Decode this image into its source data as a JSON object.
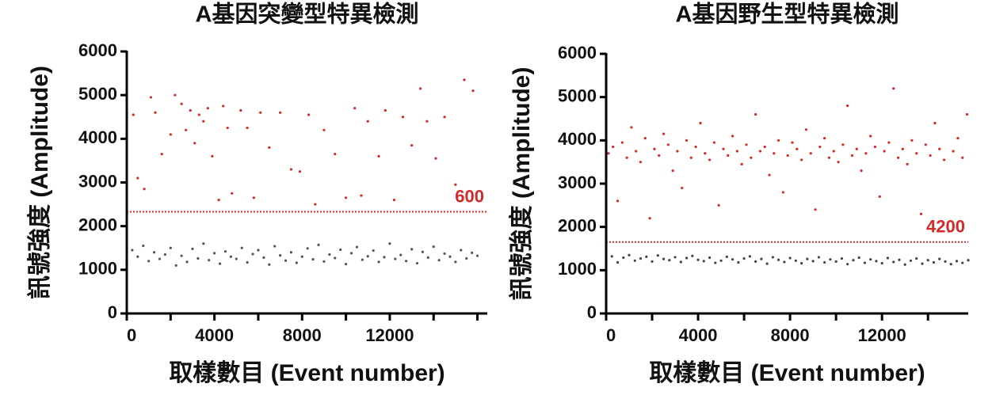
{
  "chart_data": [
    {
      "type": "scatter",
      "title": "A基因突變型特異檢測",
      "x_label": "取樣數目 (Event number)",
      "y_label": "訊號強度 (Amplitude)",
      "xlim": [
        0,
        16450
      ],
      "ylim": [
        0,
        6000
      ],
      "xticks": [
        0,
        4000,
        8000,
        12000
      ],
      "xminorticks": [
        2000,
        6000,
        10000,
        14000,
        16000
      ],
      "yticks": [
        0,
        1000,
        2000,
        3000,
        4000,
        5000,
        6000
      ],
      "threshold": 2330,
      "threshold_color": "#d42a2a",
      "annotation": "600",
      "series": [
        {
          "color": "#555555",
          "x": [
            0,
            250,
            500,
            750,
            1000,
            1250,
            1500,
            1750,
            2000,
            2250,
            2500,
            2750,
            3000,
            3250,
            3500,
            3750,
            4000,
            4250,
            4500,
            4750,
            5000,
            5250,
            5500,
            5750,
            6000,
            6250,
            6500,
            6750,
            7000,
            7250,
            7500,
            7750,
            8000,
            8250,
            8500,
            8750,
            9000,
            9250,
            9500,
            9750,
            10000,
            10250,
            10500,
            10750,
            11000,
            11250,
            11500,
            11750,
            12000,
            12250,
            12500,
            12750,
            13000,
            13250,
            13500,
            13750,
            14000,
            14250,
            14500,
            14750,
            15000,
            15250,
            15500,
            15750,
            16000
          ],
          "values": [
            1150,
            1450,
            1300,
            1550,
            1200,
            1400,
            1250,
            1350,
            1500,
            1100,
            1320,
            1180,
            1480,
            1260,
            1600,
            1220,
            1380,
            1140,
            1420,
            1300,
            1250,
            1500,
            1170,
            1360,
            1450,
            1280,
            1120,
            1540,
            1330,
            1210,
            1400,
            1160,
            1300,
            1490,
            1240,
            1570,
            1190,
            1350,
            1270,
            1460,
            1130,
            1380,
            1520,
            1230,
            1310,
            1440,
            1180,
            1290,
            1600,
            1250,
            1340,
            1200,
            1470,
            1150,
            1410,
            1280,
            1530,
            1220,
            1370,
            1300,
            1180,
            1450,
            1260,
            1390,
            1320
          ]
        },
        {
          "color": "#d42a2a",
          "x": [
            300,
            500,
            800,
            1100,
            1300,
            1600,
            2000,
            2200,
            2500,
            2700,
            2900,
            3100,
            3300,
            3500,
            3700,
            3900,
            4200,
            4400,
            4600,
            4800,
            5200,
            5500,
            5800,
            6100,
            6500,
            7000,
            7500,
            7900,
            8300,
            8600,
            9000,
            9500,
            10000,
            10400,
            10700,
            11000,
            11500,
            11800,
            12200,
            12600,
            13000,
            13400,
            13700,
            14100,
            14500,
            15000,
            15400,
            15800
          ],
          "values": [
            4550,
            3100,
            2850,
            4950,
            4600,
            3650,
            4100,
            5000,
            4800,
            4200,
            4650,
            3900,
            4550,
            4400,
            4700,
            3600,
            2600,
            4750,
            4250,
            2750,
            4650,
            4250,
            2650,
            4600,
            3800,
            4600,
            3300,
            3250,
            4550,
            2500,
            4200,
            3650,
            2650,
            4700,
            2700,
            4400,
            3600,
            4650,
            2600,
            4500,
            3850,
            5150,
            4400,
            3550,
            4500,
            2950,
            5350,
            5100
          ]
        }
      ]
    },
    {
      "type": "scatter",
      "title": "A基因野生型特異檢測",
      "x_label": "取樣數目 (Event number)",
      "y_label": "訊號強度 (Amplitude)",
      "xlim": [
        0,
        15750
      ],
      "ylim": [
        0,
        6000
      ],
      "xticks": [
        0,
        4000,
        8000,
        12000
      ],
      "xminorticks": [
        2000,
        6000,
        10000,
        14000
      ],
      "yticks": [
        0,
        1000,
        2000,
        3000,
        4000,
        5000,
        6000
      ],
      "threshold": 1650,
      "threshold_color": "#d42a2a",
      "annotation": "4200",
      "series": [
        {
          "color": "#444444",
          "x": [
            0,
            250,
            500,
            750,
            1000,
            1250,
            1500,
            1750,
            2000,
            2250,
            2500,
            2750,
            3000,
            3250,
            3500,
            3750,
            4000,
            4250,
            4500,
            4750,
            5000,
            5250,
            5500,
            5750,
            6000,
            6250,
            6500,
            6750,
            7000,
            7250,
            7500,
            7750,
            8000,
            8250,
            8500,
            8750,
            9000,
            9250,
            9500,
            9750,
            10000,
            10250,
            10500,
            10750,
            11000,
            11250,
            11500,
            11750,
            12000,
            12250,
            12500,
            12750,
            13000,
            13250,
            13500,
            13750,
            14000,
            14250,
            14500,
            14750,
            15000,
            15250,
            15500,
            15750
          ],
          "values": [
            1250,
            1320,
            1180,
            1290,
            1350,
            1220,
            1270,
            1310,
            1200,
            1340,
            1260,
            1230,
            1300,
            1190,
            1280,
            1330,
            1240,
            1210,
            1290,
            1170,
            1220,
            1310,
            1250,
            1180,
            1270,
            1320,
            1200,
            1260,
            1150,
            1300,
            1240,
            1190,
            1280,
            1220,
            1160,
            1260,
            1210,
            1300,
            1180,
            1250,
            1200,
            1270,
            1140,
            1230,
            1290,
            1170,
            1250,
            1210,
            1160,
            1280,
            1190,
            1240,
            1130,
            1220,
            1270,
            1150,
            1230,
            1180,
            1260,
            1200,
            1140,
            1210,
            1170,
            1230
          ]
        },
        {
          "color": "#d42a2a",
          "x": [
            100,
            300,
            500,
            700,
            900,
            1100,
            1300,
            1500,
            1700,
            1900,
            2100,
            2300,
            2500,
            2700,
            2900,
            3100,
            3300,
            3500,
            3700,
            3900,
            4100,
            4300,
            4500,
            4700,
            4900,
            5100,
            5300,
            5500,
            5700,
            5900,
            6100,
            6300,
            6500,
            6700,
            6900,
            7100,
            7300,
            7500,
            7700,
            7900,
            8100,
            8300,
            8500,
            8700,
            8900,
            9100,
            9300,
            9500,
            9700,
            9900,
            10100,
            10300,
            10500,
            10700,
            10900,
            11100,
            11300,
            11500,
            11700,
            11900,
            12100,
            12300,
            12500,
            12700,
            12900,
            13100,
            13300,
            13500,
            13700,
            13900,
            14100,
            14300,
            14500,
            14700,
            14900,
            15100,
            15300,
            15500,
            15700
          ],
          "values": [
            3700,
            3850,
            2600,
            3950,
            3600,
            4300,
            3750,
            3500,
            4050,
            2200,
            3800,
            3650,
            4150,
            3900,
            3300,
            3750,
            2900,
            4000,
            3600,
            3850,
            4400,
            3700,
            3550,
            3950,
            2500,
            3800,
            3650,
            4100,
            3750,
            3450,
            3900,
            3600,
            4600,
            3750,
            3850,
            3200,
            3700,
            4000,
            2800,
            3650,
            3950,
            3800,
            3550,
            4250,
            3700,
            2400,
            3850,
            4050,
            3600,
            3750,
            3500,
            3900,
            4800,
            3650,
            3800,
            3300,
            3700,
            4100,
            3850,
            2700,
            3750,
            3950,
            5200,
            3600,
            3800,
            3450,
            4000,
            3700,
            2300,
            3900,
            3650,
            4400,
            3800,
            3550,
            1900,
            3750,
            4050,
            3600,
            4600
          ]
        }
      ]
    }
  ]
}
